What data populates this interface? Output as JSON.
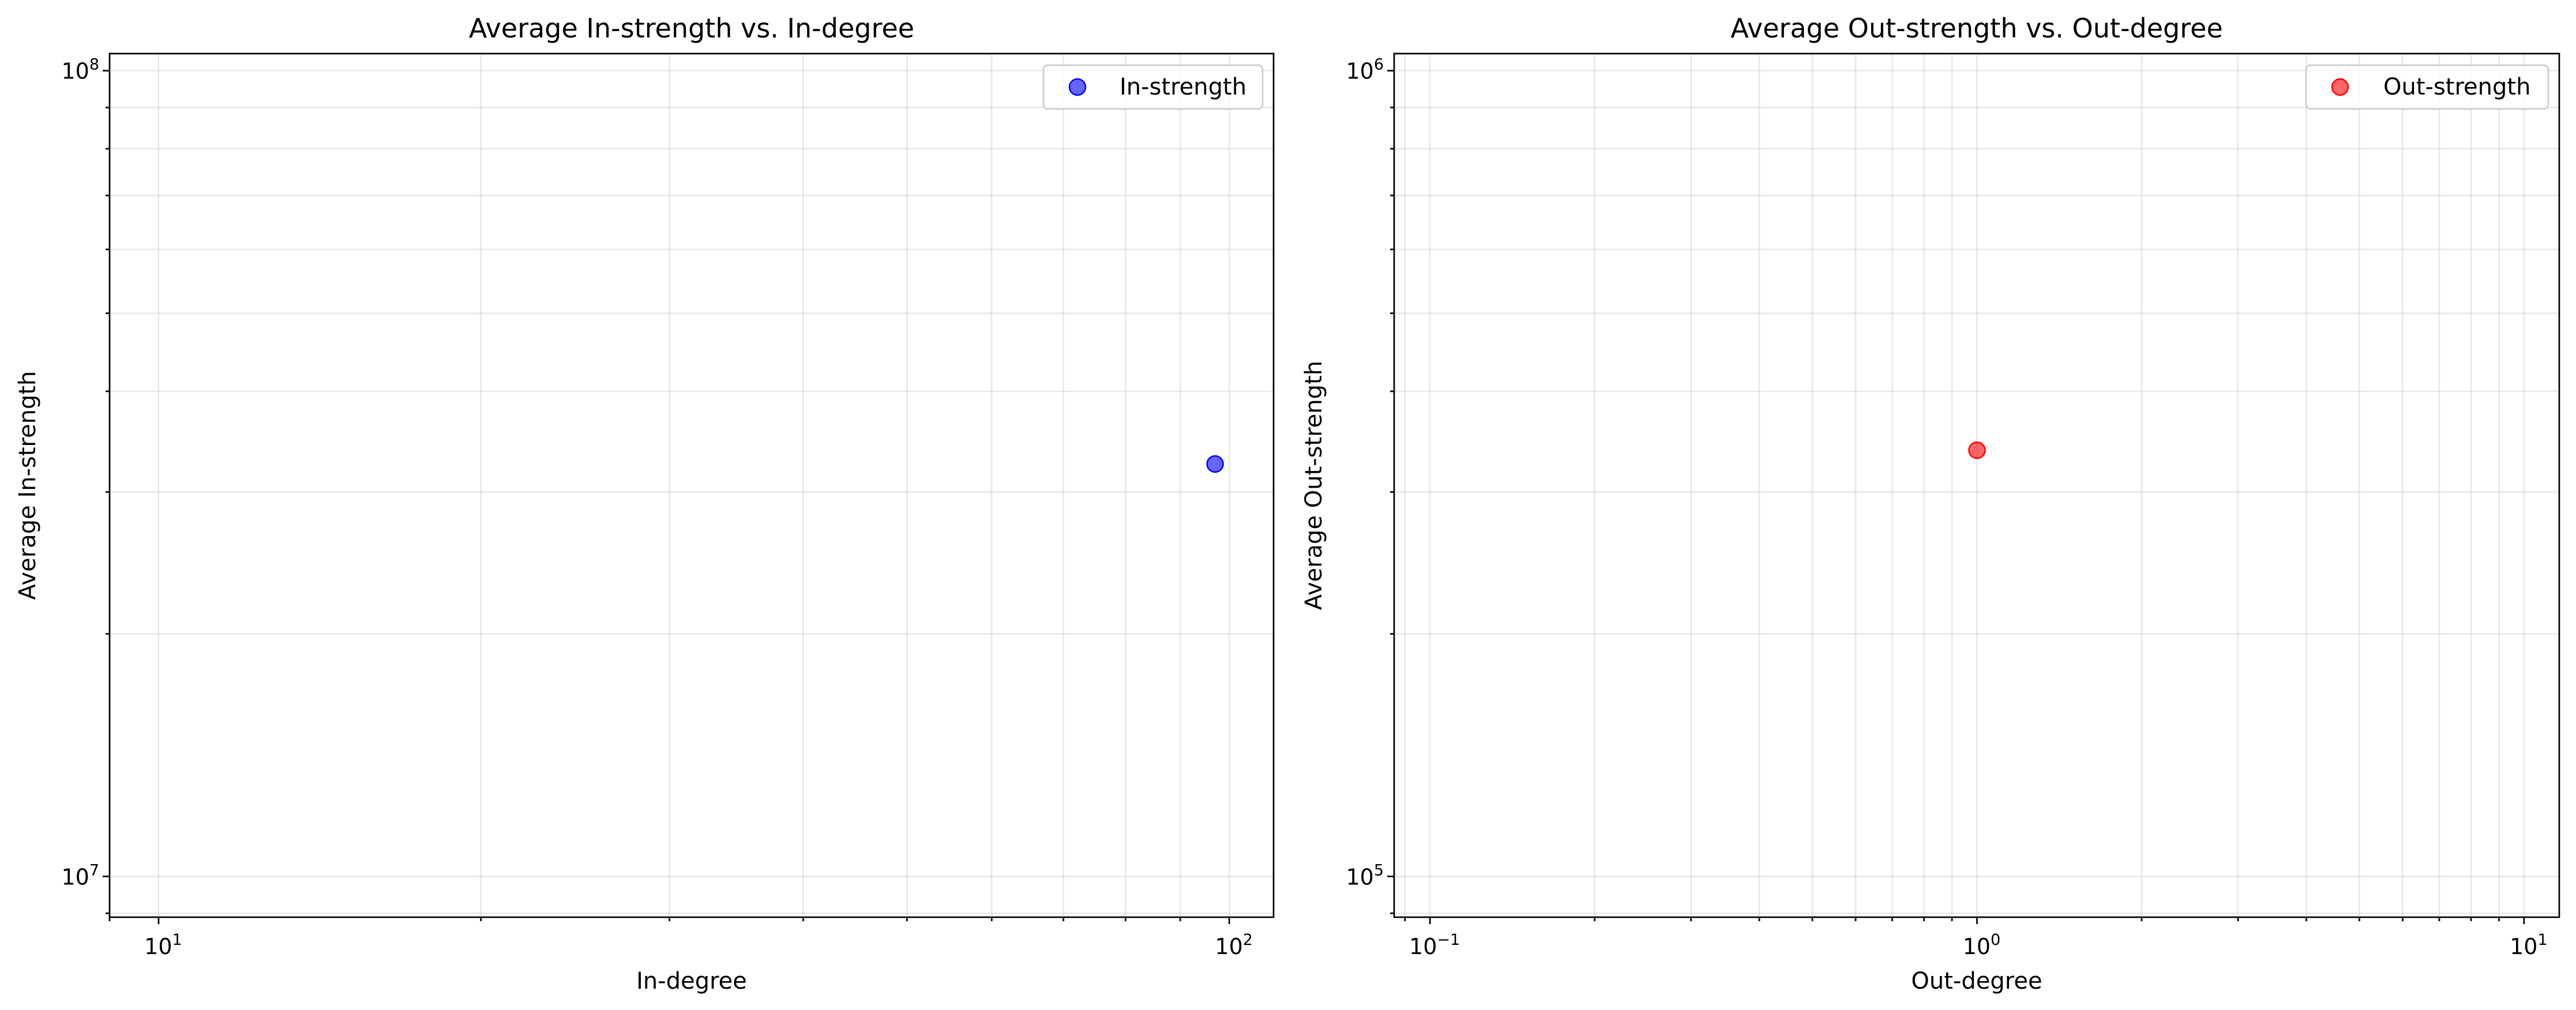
{
  "chart_data": [
    {
      "type": "scatter",
      "title": "Average In-strength vs. In-degree",
      "xlabel": "In-degree",
      "ylabel": "Average In-strength",
      "xscale": "log",
      "yscale": "log",
      "xlim": [
        9.0,
        110
      ],
      "ylim": [
        8900000,
        105000000
      ],
      "grid": true,
      "legend": "upper right",
      "x_ticks": [
        {
          "base": "10",
          "exp": "1"
        },
        {
          "base": "10",
          "exp": "2"
        }
      ],
      "y_ticks": [
        {
          "base": "10",
          "exp": "7"
        },
        {
          "base": "10",
          "exp": "8"
        }
      ],
      "series": [
        {
          "name": "In-strength",
          "color": "#0000ff",
          "x": [
            97
          ],
          "y": [
            32500000
          ]
        }
      ]
    },
    {
      "type": "scatter",
      "title": "Average Out-strength vs. Out-degree",
      "xlabel": "Out-degree",
      "ylabel": "Average Out-strength",
      "xscale": "log",
      "yscale": "log",
      "xlim": [
        0.086,
        11.6
      ],
      "ylim": [
        89000,
        1050000
      ],
      "grid": true,
      "legend": "upper right",
      "x_ticks": [
        {
          "base": "10",
          "exp": "−1"
        },
        {
          "base": "10",
          "exp": "0"
        },
        {
          "base": "10",
          "exp": "1"
        }
      ],
      "y_ticks": [
        {
          "base": "10",
          "exp": "5"
        },
        {
          "base": "10",
          "exp": "6"
        }
      ],
      "series": [
        {
          "name": "Out-strength",
          "color": "#ff0000",
          "x": [
            1
          ],
          "y": [
            338000
          ]
        }
      ]
    }
  ]
}
